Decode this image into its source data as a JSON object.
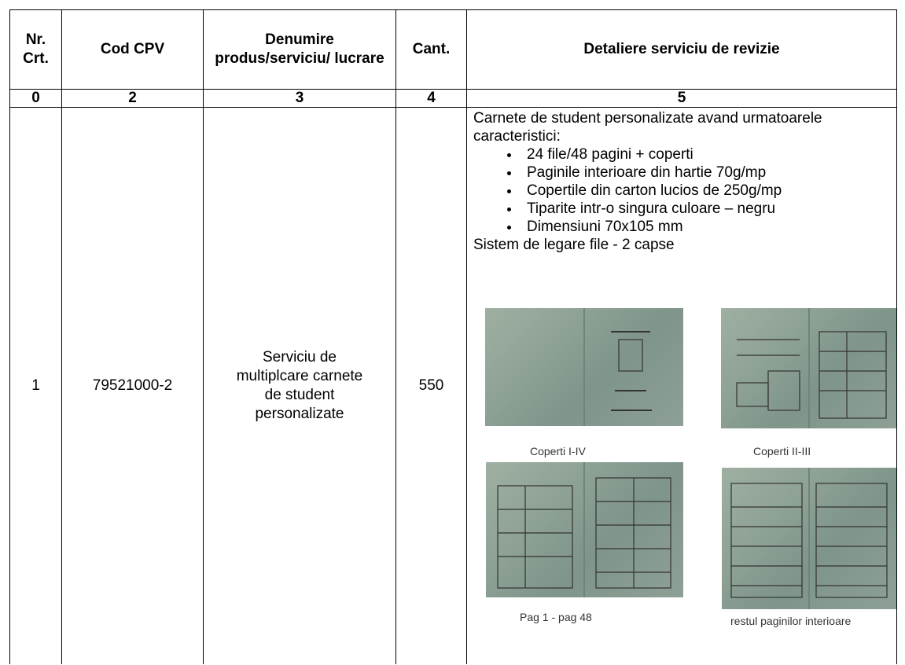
{
  "table": {
    "header": [
      "Nr. Crt.",
      "Cod CPV",
      "Denumire produs/serviciu/ lucrare",
      "Cant.",
      "Detaliere serviciu de revizie"
    ],
    "numbering": [
      "0",
      "2",
      "3",
      "4",
      "5"
    ],
    "rows": [
      {
        "nr": "1",
        "cpv": "79521000-2",
        "name": "Serviciu de multiplcare carnete de student personalizate",
        "qty": "550",
        "detail": {
          "intro": "Carnete de student personalizate avand urmatoarele caracteristici:",
          "bullets": [
            "24 file/48 pagini + coperti",
            "Paginile interioare din hartie 70g/mp",
            "Copertile din carton lucios de 250g/mp",
            "Tiparite intr-o singura culoare – negru",
            "Dimensiuni 70x105 mm"
          ],
          "footer": "Sistem de legare file - 2 capse",
          "images": [
            {
              "caption": "Coperti I-IV"
            },
            {
              "caption": "Coperti II-III"
            },
            {
              "caption": "Pag 1 - pag 48"
            },
            {
              "caption": "restul paginilor interioare"
            }
          ]
        }
      }
    ]
  }
}
